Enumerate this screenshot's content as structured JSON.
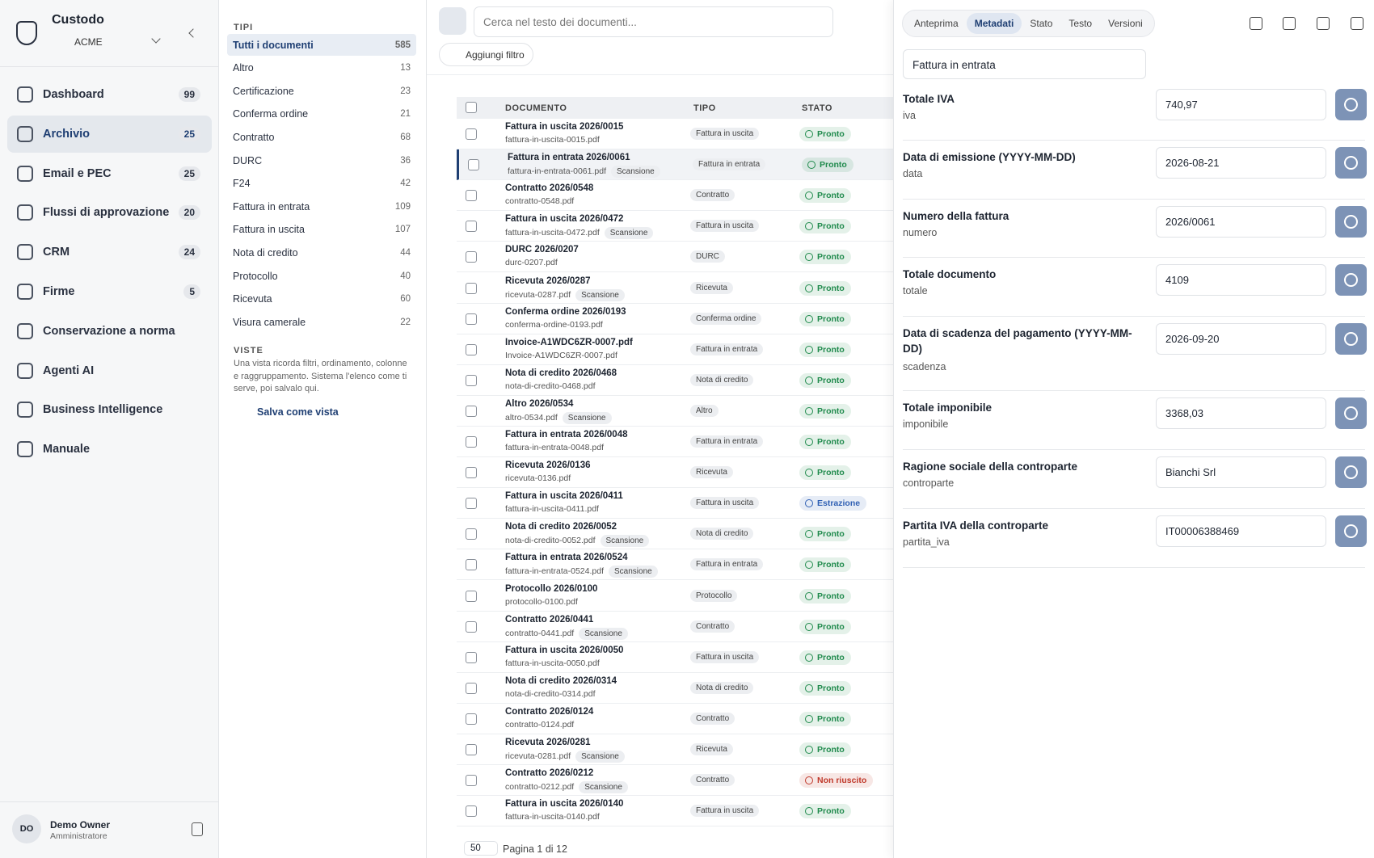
{
  "app": {
    "name": "Custodo",
    "org": "ACME"
  },
  "nav": [
    {
      "label": "Dashboard",
      "count": 99
    },
    {
      "label": "Archivio",
      "count": 25
    },
    {
      "label": "Email e PEC",
      "count": 25
    },
    {
      "label": "Flussi di approvazione",
      "count": 20
    },
    {
      "label": "CRM",
      "count": 24
    },
    {
      "label": "Firme",
      "count": 5
    },
    {
      "label": "Conservazione a norma"
    },
    {
      "label": "Agenti AI"
    },
    {
      "label": "Business Intelligence"
    },
    {
      "label": "Manuale"
    }
  ],
  "user": {
    "initials": "DO",
    "name": "Demo Owner",
    "role": "Amministratore"
  },
  "types": {
    "heading": "TIPI",
    "items": [
      {
        "label": "Tutti i documenti",
        "count": 585
      },
      {
        "label": "Altro",
        "count": 13
      },
      {
        "label": "Certificazione",
        "count": 23
      },
      {
        "label": "Conferma ordine",
        "count": 21
      },
      {
        "label": "Contratto",
        "count": 68
      },
      {
        "label": "DURC",
        "count": 36
      },
      {
        "label": "F24",
        "count": 42
      },
      {
        "label": "Fattura in entrata",
        "count": 109
      },
      {
        "label": "Fattura in uscita",
        "count": 107
      },
      {
        "label": "Nota di credito",
        "count": 44
      },
      {
        "label": "Protocollo",
        "count": 40
      },
      {
        "label": "Ricevuta",
        "count": 60
      },
      {
        "label": "Visura camerale",
        "count": 22
      }
    ],
    "views_heading": "VISTE",
    "views_text": "Una vista ricorda filtri, ordinamento, colonne e raggruppamento. Sistema l'elenco come ti serve, poi salvalo qui.",
    "save_view": "Salva come vista"
  },
  "toolbar": {
    "search": "Cerca nel testo dei documenti...",
    "add_filter": "Aggiungi filtro"
  },
  "table": {
    "headers": [
      "DOCUMENTO",
      "TIPO",
      "STATO"
    ],
    "rows": [
      {
        "title": "Fattura in uscita 2026/0015",
        "file": "fattura-in-uscita-0015.pdf",
        "type": "Fattura in uscita",
        "status": "Pronto",
        "status_color": "#1f8a4c"
      },
      {
        "title": "Fattura in entrata 2026/0061",
        "file": "fattura-in-entrata-0061.pdf",
        "tag": "Scansione",
        "type": "Fattura in entrata",
        "status": "Pronto",
        "status_color": "#1f8a4c"
      },
      {
        "title": "Contratto 2026/0548",
        "file": "contratto-0548.pdf",
        "type": "Contratto",
        "status": "Pronto",
        "status_color": "#1f8a4c"
      },
      {
        "title": "Fattura in uscita 2026/0472",
        "file": "fattura-in-uscita-0472.pdf",
        "tag": "Scansione",
        "type": "Fattura in uscita",
        "status": "Pronto",
        "status_color": "#1f8a4c"
      },
      {
        "title": "DURC 2026/0207",
        "file": "durc-0207.pdf",
        "type": "DURC",
        "status": "Pronto",
        "status_color": "#1f8a4c"
      },
      {
        "title": "Ricevuta 2026/0287",
        "file": "ricevuta-0287.pdf",
        "tag": "Scansione",
        "type": "Ricevuta",
        "status": "Pronto",
        "status_color": "#1f8a4c"
      },
      {
        "title": "Conferma ordine 2026/0193",
        "file": "conferma-ordine-0193.pdf",
        "type": "Conferma ordine",
        "status": "Pronto",
        "status_color": "#1f8a4c"
      },
      {
        "title": "Invoice-A1WDC6ZR-0007.pdf",
        "file": "Invoice-A1WDC6ZR-0007.pdf",
        "type": "Fattura in entrata",
        "status": "Pronto",
        "status_color": "#1f8a4c"
      },
      {
        "title": "Nota di credito 2026/0468",
        "file": "nota-di-credito-0468.pdf",
        "type": "Nota di credito",
        "status": "Pronto",
        "status_color": "#1f8a4c"
      },
      {
        "title": "Altro 2026/0534",
        "file": "altro-0534.pdf",
        "tag": "Scansione",
        "type": "Altro",
        "status": "Pronto",
        "status_color": "#1f8a4c"
      },
      {
        "title": "Fattura in entrata 2026/0048",
        "file": "fattura-in-entrata-0048.pdf",
        "type": "Fattura in entrata",
        "status": "Pronto",
        "status_color": "#1f8a4c"
      },
      {
        "title": "Ricevuta 2026/0136",
        "file": "ricevuta-0136.pdf",
        "type": "Ricevuta",
        "status": "Pronto",
        "status_color": "#1f8a4c"
      },
      {
        "title": "Fattura in uscita 2026/0411",
        "file": "fattura-in-uscita-0411.pdf",
        "type": "Fattura in uscita",
        "status": "Estrazione",
        "status_color": "#2f5fb3"
      },
      {
        "title": "Nota di credito 2026/0052",
        "file": "nota-di-credito-0052.pdf",
        "tag": "Scansione",
        "type": "Nota di credito",
        "status": "Pronto",
        "status_color": "#1f8a4c"
      },
      {
        "title": "Fattura in entrata 2026/0524",
        "file": "fattura-in-entrata-0524.pdf",
        "tag": "Scansione",
        "type": "Fattura in entrata",
        "status": "Pronto",
        "status_color": "#1f8a4c"
      },
      {
        "title": "Protocollo 2026/0100",
        "file": "protocollo-0100.pdf",
        "type": "Protocollo",
        "status": "Pronto",
        "status_color": "#1f8a4c"
      },
      {
        "title": "Contratto 2026/0441",
        "file": "contratto-0441.pdf",
        "tag": "Scansione",
        "type": "Contratto",
        "status": "Pronto",
        "status_color": "#1f8a4c"
      },
      {
        "title": "Fattura in uscita 2026/0050",
        "file": "fattura-in-uscita-0050.pdf",
        "type": "Fattura in uscita",
        "status": "Pronto",
        "status_color": "#1f8a4c"
      },
      {
        "title": "Nota di credito 2026/0314",
        "file": "nota-di-credito-0314.pdf",
        "type": "Nota di credito",
        "status": "Pronto",
        "status_color": "#1f8a4c"
      },
      {
        "title": "Contratto 2026/0124",
        "file": "contratto-0124.pdf",
        "type": "Contratto",
        "status": "Pronto",
        "status_color": "#1f8a4c"
      },
      {
        "title": "Ricevuta 2026/0281",
        "file": "ricevuta-0281.pdf",
        "tag": "Scansione",
        "type": "Ricevuta",
        "status": "Pronto",
        "status_color": "#1f8a4c"
      },
      {
        "title": "Contratto 2026/0212",
        "file": "contratto-0212.pdf",
        "tag": "Scansione",
        "type": "Contratto",
        "status": "Non riuscito",
        "status_color": "#c0392b"
      },
      {
        "title": "Fattura in uscita 2026/0140",
        "file": "fattura-in-uscita-0140.pdf",
        "type": "Fattura in uscita",
        "status": "Pronto",
        "status_color": "#1f8a4c"
      }
    ]
  },
  "pagination": {
    "page_size": 50,
    "label": "Pagina 1 di 12"
  },
  "detail": {
    "tabs": [
      "Anteprima",
      "Metadati",
      "Stato",
      "Testo",
      "Versioni"
    ],
    "doc_type": "Fattura in entrata",
    "fields": [
      {
        "label": "Totale IVA",
        "key": "iva",
        "value": "740,97"
      },
      {
        "label": "Data di emissione (YYYY-MM-DD)",
        "key": "data",
        "value": "2026-08-21"
      },
      {
        "label": "Numero della fattura",
        "key": "numero",
        "value": "2026/0061"
      },
      {
        "label": "Totale documento",
        "key": "totale",
        "value": "4109"
      },
      {
        "label": "Data di scadenza del pagamento (YYYY-MM-DD)",
        "key": "scadenza",
        "value": "2026-09-20"
      },
      {
        "label": "Totale imponibile",
        "key": "imponibile",
        "value": "3368,03"
      },
      {
        "label": "Ragione sociale della controparte",
        "key": "controparte",
        "value": "Bianchi Srl"
      },
      {
        "label": "Partita IVA della controparte",
        "key": "partita_iva",
        "value": "IT00006388469"
      }
    ]
  }
}
